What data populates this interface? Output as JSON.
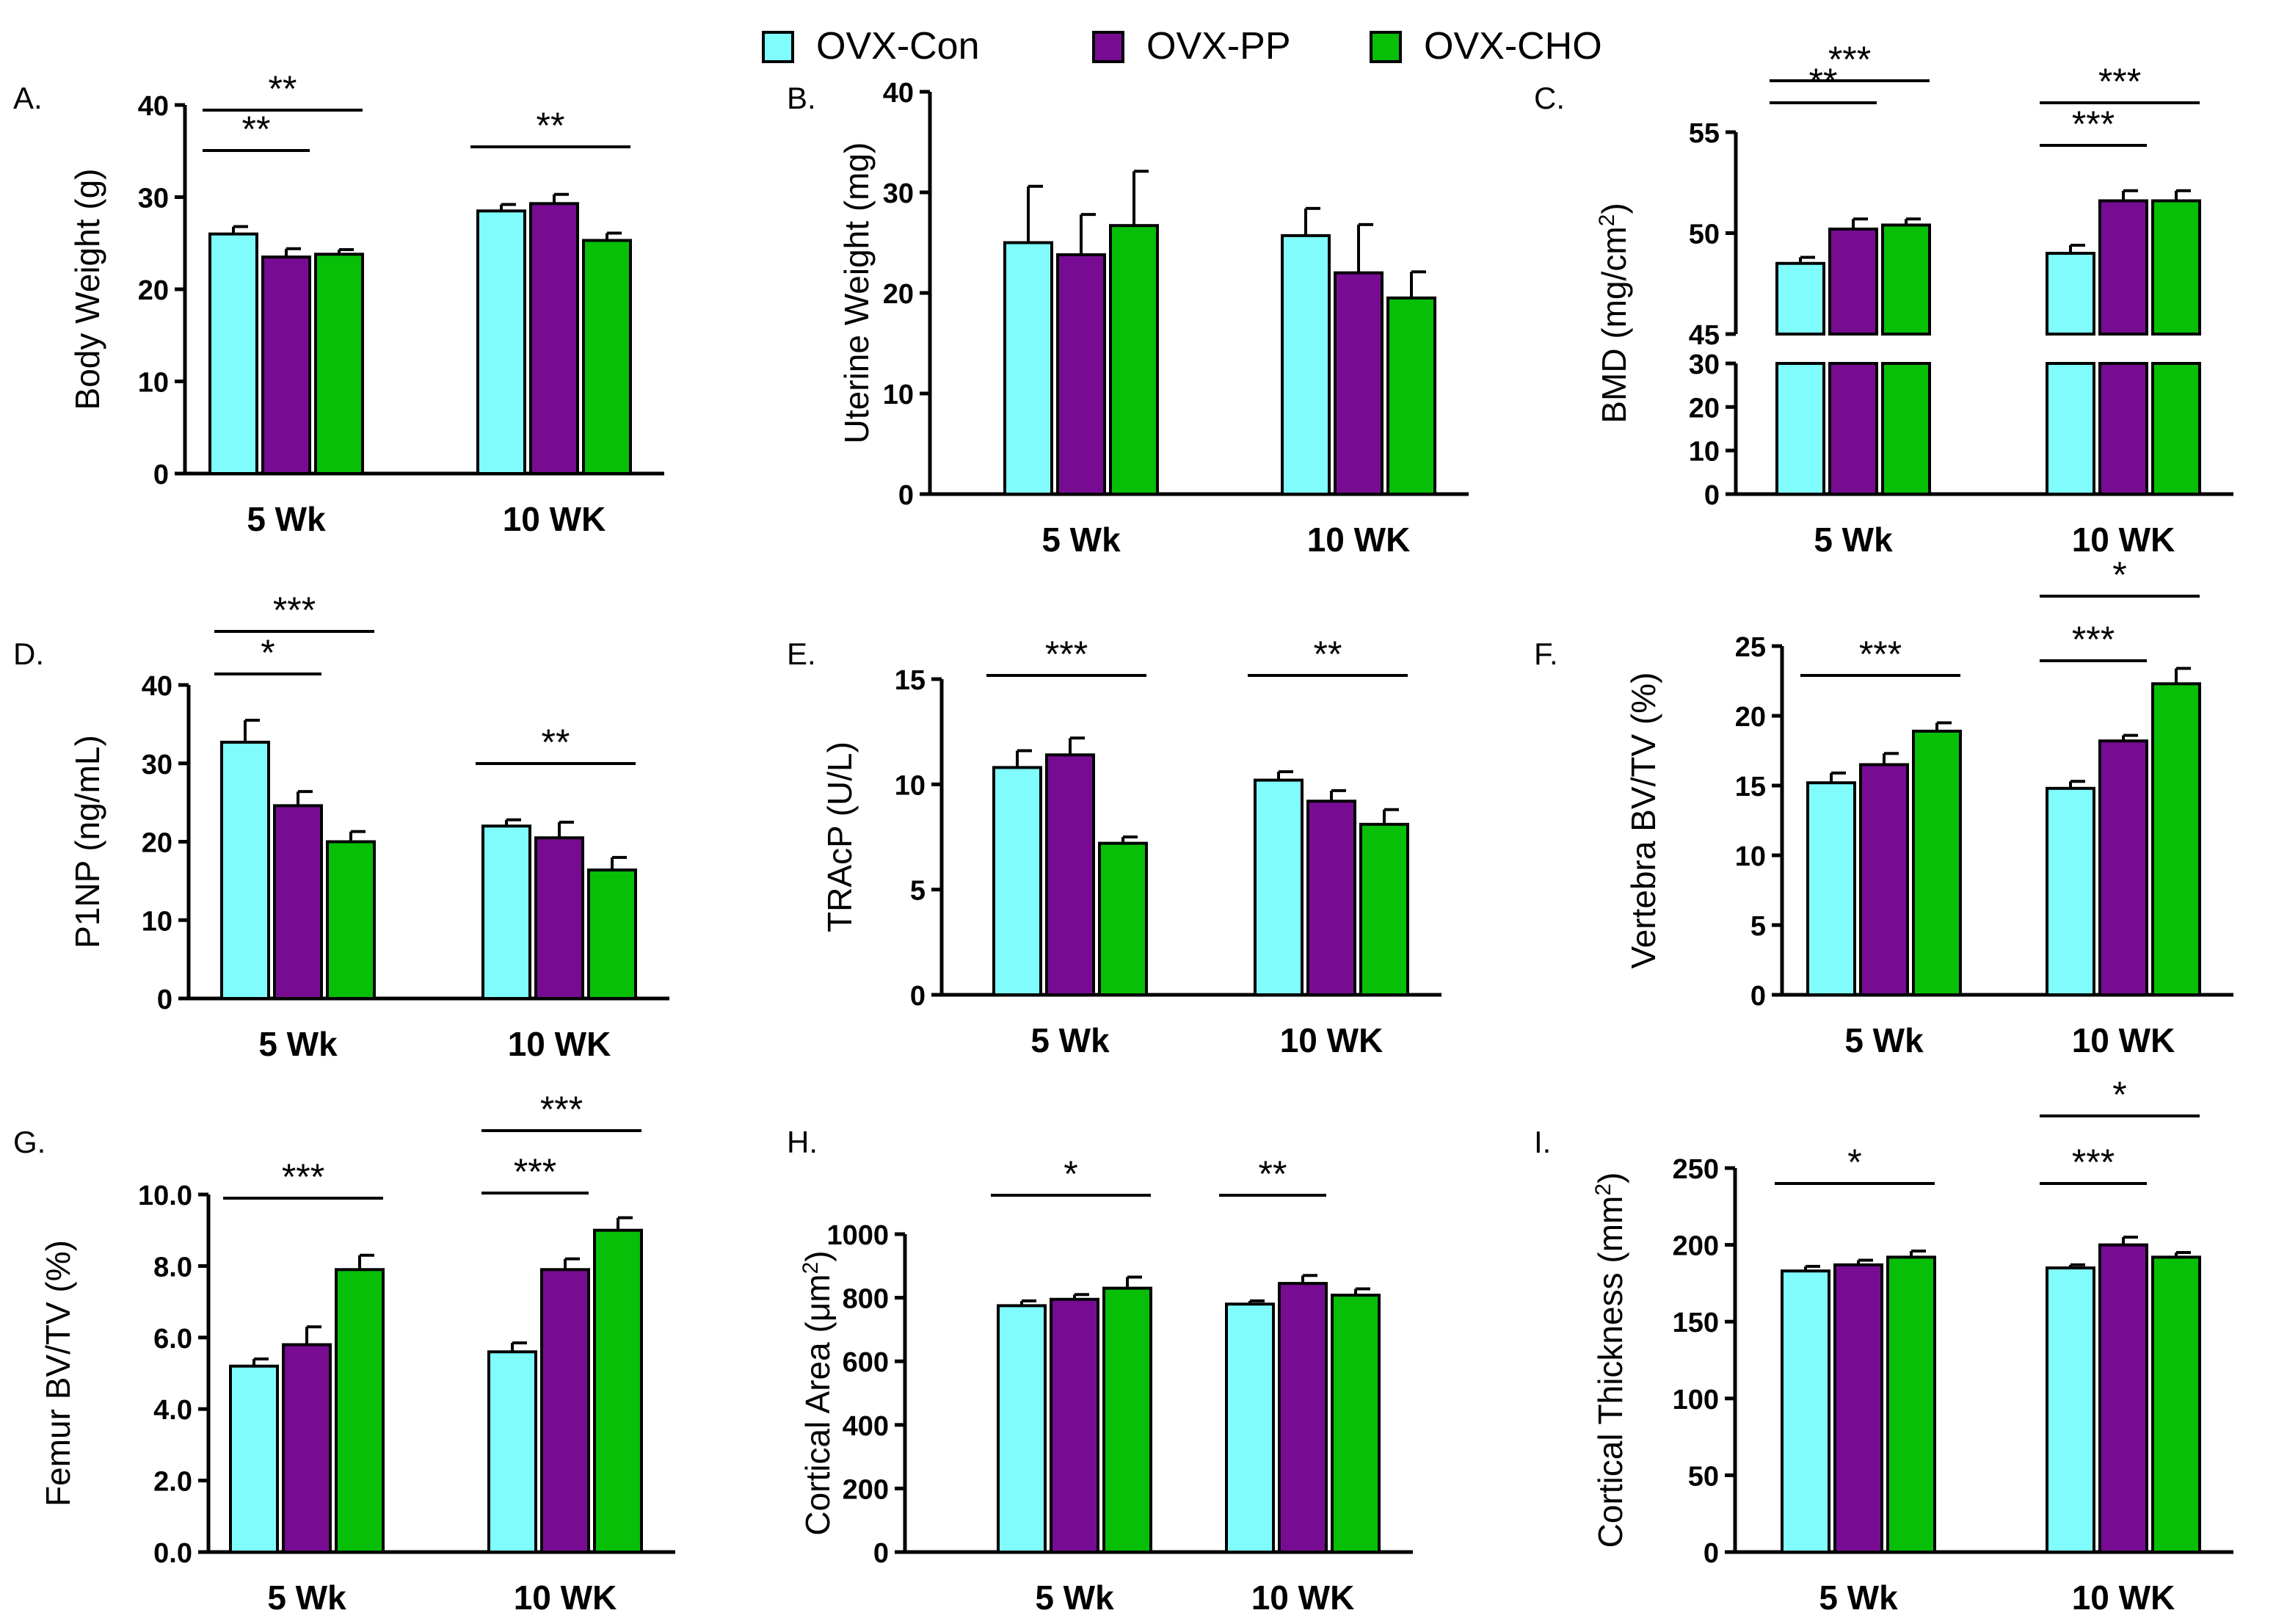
{
  "groups": [
    {
      "name": "OVX-Con",
      "color": "#80FCFC"
    },
    {
      "name": "OVX-PP",
      "color": "#770C93"
    },
    {
      "name": "OVX-CHO",
      "color": "#06BF06"
    }
  ],
  "bar_stroke": "#000000",
  "chart_data": [
    {
      "type": "bar",
      "label": "A.",
      "title": "",
      "xlabel": "",
      "ylabel": "Body Weight (g)",
      "ylabel_sup": "",
      "categories": [
        "5 Wk",
        "10 WK"
      ],
      "ylim": [
        0,
        40
      ],
      "yticks": [
        "0",
        "10",
        "20",
        "30",
        "40"
      ],
      "series": [
        {
          "name": "OVX-Con",
          "values": [
            26.0,
            28.5
          ],
          "errors": [
            0.8,
            0.7
          ]
        },
        {
          "name": "OVX-PP",
          "values": [
            23.5,
            29.3
          ],
          "errors": [
            0.9,
            1.0
          ]
        },
        {
          "name": "OVX-CHO",
          "values": [
            23.8,
            25.3
          ],
          "errors": [
            0.5,
            0.8
          ]
        }
      ],
      "significance": [
        {
          "category": 0,
          "from": 0,
          "to": 1,
          "stars": "**"
        },
        {
          "category": 0,
          "from": 0,
          "to": 2,
          "stars": "**"
        },
        {
          "category": 1,
          "from": 0,
          "to": 2,
          "stars": "**"
        }
      ]
    },
    {
      "type": "bar",
      "label": "B.",
      "title": "",
      "xlabel": "",
      "ylabel": "Uterine Weight (mg)",
      "ylabel_sup": "",
      "categories": [
        "5 Wk",
        "10 WK"
      ],
      "ylim": [
        0,
        40
      ],
      "yticks": [
        "0",
        "10",
        "20",
        "30",
        "40"
      ],
      "series": [
        {
          "name": "OVX-Con",
          "values": [
            25.0,
            25.7
          ],
          "errors": [
            5.6,
            2.7
          ]
        },
        {
          "name": "OVX-PP",
          "values": [
            23.8,
            22.0
          ],
          "errors": [
            4.0,
            4.8
          ]
        },
        {
          "name": "OVX-CHO",
          "values": [
            26.7,
            19.5
          ],
          "errors": [
            5.4,
            2.6
          ]
        }
      ],
      "significance": []
    },
    {
      "type": "bar",
      "label": "C.",
      "title": "",
      "xlabel": "",
      "ylabel": "BMD (mg/cm",
      "ylabel_sup": "2",
      "ylabel_tail": ")",
      "categories": [
        "5 Wk",
        "10 WK"
      ],
      "ylim": [
        0,
        55
      ],
      "axis_break": {
        "lower": [
          0,
          30
        ],
        "upper": [
          45,
          55
        ]
      },
      "yticks_lower": [
        "0",
        "10",
        "20",
        "30"
      ],
      "yticks_upper": [
        "45",
        "50",
        "55"
      ],
      "series": [
        {
          "name": "OVX-Con",
          "values": [
            48.5,
            49.0
          ],
          "errors": [
            0.3,
            0.4
          ]
        },
        {
          "name": "OVX-PP",
          "values": [
            50.2,
            51.6
          ],
          "errors": [
            0.5,
            0.5
          ]
        },
        {
          "name": "OVX-CHO",
          "values": [
            50.4,
            51.6
          ],
          "errors": [
            0.3,
            0.5
          ]
        }
      ],
      "significance": [
        {
          "category": 0,
          "from": 0,
          "to": 1,
          "stars": "**"
        },
        {
          "category": 0,
          "from": 0,
          "to": 2,
          "stars": "***"
        },
        {
          "category": 1,
          "from": 0,
          "to": 1,
          "stars": "***"
        },
        {
          "category": 1,
          "from": 0,
          "to": 2,
          "stars": "***"
        }
      ]
    },
    {
      "type": "bar",
      "label": "D.",
      "title": "",
      "xlabel": "",
      "ylabel": "P1NP (ng/mL)",
      "ylabel_sup": "",
      "categories": [
        "5 Wk",
        "10 WK"
      ],
      "ylim": [
        0,
        40
      ],
      "yticks": [
        "0",
        "10",
        "20",
        "30",
        "40"
      ],
      "series": [
        {
          "name": "OVX-Con",
          "values": [
            32.7,
            22.0
          ],
          "errors": [
            2.8,
            0.8
          ]
        },
        {
          "name": "OVX-PP",
          "values": [
            24.6,
            20.5
          ],
          "errors": [
            1.8,
            2.0
          ]
        },
        {
          "name": "OVX-CHO",
          "values": [
            20.0,
            16.4
          ],
          "errors": [
            1.3,
            1.6
          ]
        }
      ],
      "significance": [
        {
          "category": 0,
          "from": 0,
          "to": 1,
          "stars": "*"
        },
        {
          "category": 0,
          "from": 0,
          "to": 2,
          "stars": "***"
        },
        {
          "category": 1,
          "from": 0,
          "to": 2,
          "stars": "**"
        }
      ]
    },
    {
      "type": "bar",
      "label": "E.",
      "title": "",
      "xlabel": "",
      "ylabel": "TRAcP (U/L)",
      "ylabel_sup": "",
      "categories": [
        "5 Wk",
        "10 WK"
      ],
      "ylim": [
        0,
        15
      ],
      "yticks": [
        "0",
        "5",
        "10",
        "15"
      ],
      "series": [
        {
          "name": "OVX-Con",
          "values": [
            10.8,
            10.2
          ],
          "errors": [
            0.8,
            0.4
          ]
        },
        {
          "name": "OVX-PP",
          "values": [
            11.4,
            9.2
          ],
          "errors": [
            0.8,
            0.5
          ]
        },
        {
          "name": "OVX-CHO",
          "values": [
            7.2,
            8.1
          ],
          "errors": [
            0.3,
            0.7
          ]
        }
      ],
      "significance": [
        {
          "category": 0,
          "from": 0,
          "to": 2,
          "stars": "***"
        },
        {
          "category": 1,
          "from": 0,
          "to": 2,
          "stars": "**"
        }
      ]
    },
    {
      "type": "bar",
      "label": "F.",
      "title": "",
      "xlabel": "",
      "ylabel": "Vertebra BV/TV (%)",
      "ylabel_sup": "",
      "categories": [
        "5 Wk",
        "10 WK"
      ],
      "ylim": [
        0,
        25
      ],
      "yticks": [
        "0",
        "5",
        "10",
        "15",
        "20",
        "25"
      ],
      "series": [
        {
          "name": "OVX-Con",
          "values": [
            15.2,
            14.8
          ],
          "errors": [
            0.7,
            0.5
          ]
        },
        {
          "name": "OVX-PP",
          "values": [
            16.5,
            18.2
          ],
          "errors": [
            0.8,
            0.4
          ]
        },
        {
          "name": "OVX-CHO",
          "values": [
            18.9,
            22.3
          ],
          "errors": [
            0.6,
            1.1
          ]
        }
      ],
      "significance": [
        {
          "category": 0,
          "from": 0,
          "to": 2,
          "stars": "***"
        },
        {
          "category": 1,
          "from": 0,
          "to": 1,
          "stars": "***"
        },
        {
          "category": 1,
          "from": 0,
          "to": 2,
          "stars": "*"
        }
      ]
    },
    {
      "type": "bar",
      "label": "G.",
      "title": "",
      "xlabel": "",
      "ylabel": "Femur BV/TV (%)",
      "ylabel_sup": "",
      "categories": [
        "5 Wk",
        "10 WK"
      ],
      "ylim": [
        0,
        10
      ],
      "yticks": [
        "0.0",
        "2.0",
        "4.0",
        "6.0",
        "8.0",
        "10.0"
      ],
      "series": [
        {
          "name": "OVX-Con",
          "values": [
            5.2,
            5.6
          ],
          "errors": [
            0.2,
            0.25
          ]
        },
        {
          "name": "OVX-PP",
          "values": [
            5.8,
            7.9
          ],
          "errors": [
            0.5,
            0.3
          ]
        },
        {
          "name": "OVX-CHO",
          "values": [
            7.9,
            9.0
          ],
          "errors": [
            0.4,
            0.35
          ]
        }
      ],
      "significance": [
        {
          "category": 0,
          "from": 0,
          "to": 2,
          "stars": "***"
        },
        {
          "category": 1,
          "from": 0,
          "to": 1,
          "stars": "***"
        },
        {
          "category": 1,
          "from": 0,
          "to": 2,
          "stars": "***"
        }
      ]
    },
    {
      "type": "bar",
      "label": "H.",
      "title": "",
      "xlabel": "",
      "ylabel": "Cortical Area (",
      "ylabel_mu": "μm",
      "ylabel_sup": "2",
      "ylabel_tail": ")",
      "categories": [
        "5 Wk",
        "10 WK"
      ],
      "ylim": [
        0,
        1000
      ],
      "yticks": [
        "0",
        "200",
        "400",
        "600",
        "800",
        "1000"
      ],
      "series": [
        {
          "name": "OVX-Con",
          "values": [
            775,
            780
          ],
          "errors": [
            15,
            10
          ]
        },
        {
          "name": "OVX-PP",
          "values": [
            795,
            845
          ],
          "errors": [
            15,
            25
          ]
        },
        {
          "name": "OVX-CHO",
          "values": [
            830,
            808
          ],
          "errors": [
            35,
            20
          ]
        }
      ],
      "significance": [
        {
          "category": 0,
          "from": 0,
          "to": 2,
          "stars": "*"
        },
        {
          "category": 1,
          "from": 0,
          "to": 1,
          "stars": "**"
        }
      ]
    },
    {
      "type": "bar",
      "label": "I.",
      "title": "",
      "xlabel": "",
      "ylabel": "Cortical Thickness (mm",
      "ylabel_sup": "2",
      "ylabel_tail": ")",
      "categories": [
        "5 Wk",
        "10 WK"
      ],
      "ylim": [
        0,
        250
      ],
      "yticks": [
        "0",
        "50",
        "100",
        "150",
        "200",
        "250"
      ],
      "series": [
        {
          "name": "OVX-Con",
          "values": [
            183,
            185
          ],
          "errors": [
            3,
            2
          ]
        },
        {
          "name": "OVX-PP",
          "values": [
            187,
            200
          ],
          "errors": [
            3,
            5
          ]
        },
        {
          "name": "OVX-CHO",
          "values": [
            192,
            192
          ],
          "errors": [
            4,
            3
          ]
        }
      ],
      "significance": [
        {
          "category": 0,
          "from": 0,
          "to": 2,
          "stars": "*"
        },
        {
          "category": 1,
          "from": 0,
          "to": 1,
          "stars": "***"
        },
        {
          "category": 1,
          "from": 0,
          "to": 2,
          "stars": "*"
        }
      ]
    }
  ]
}
